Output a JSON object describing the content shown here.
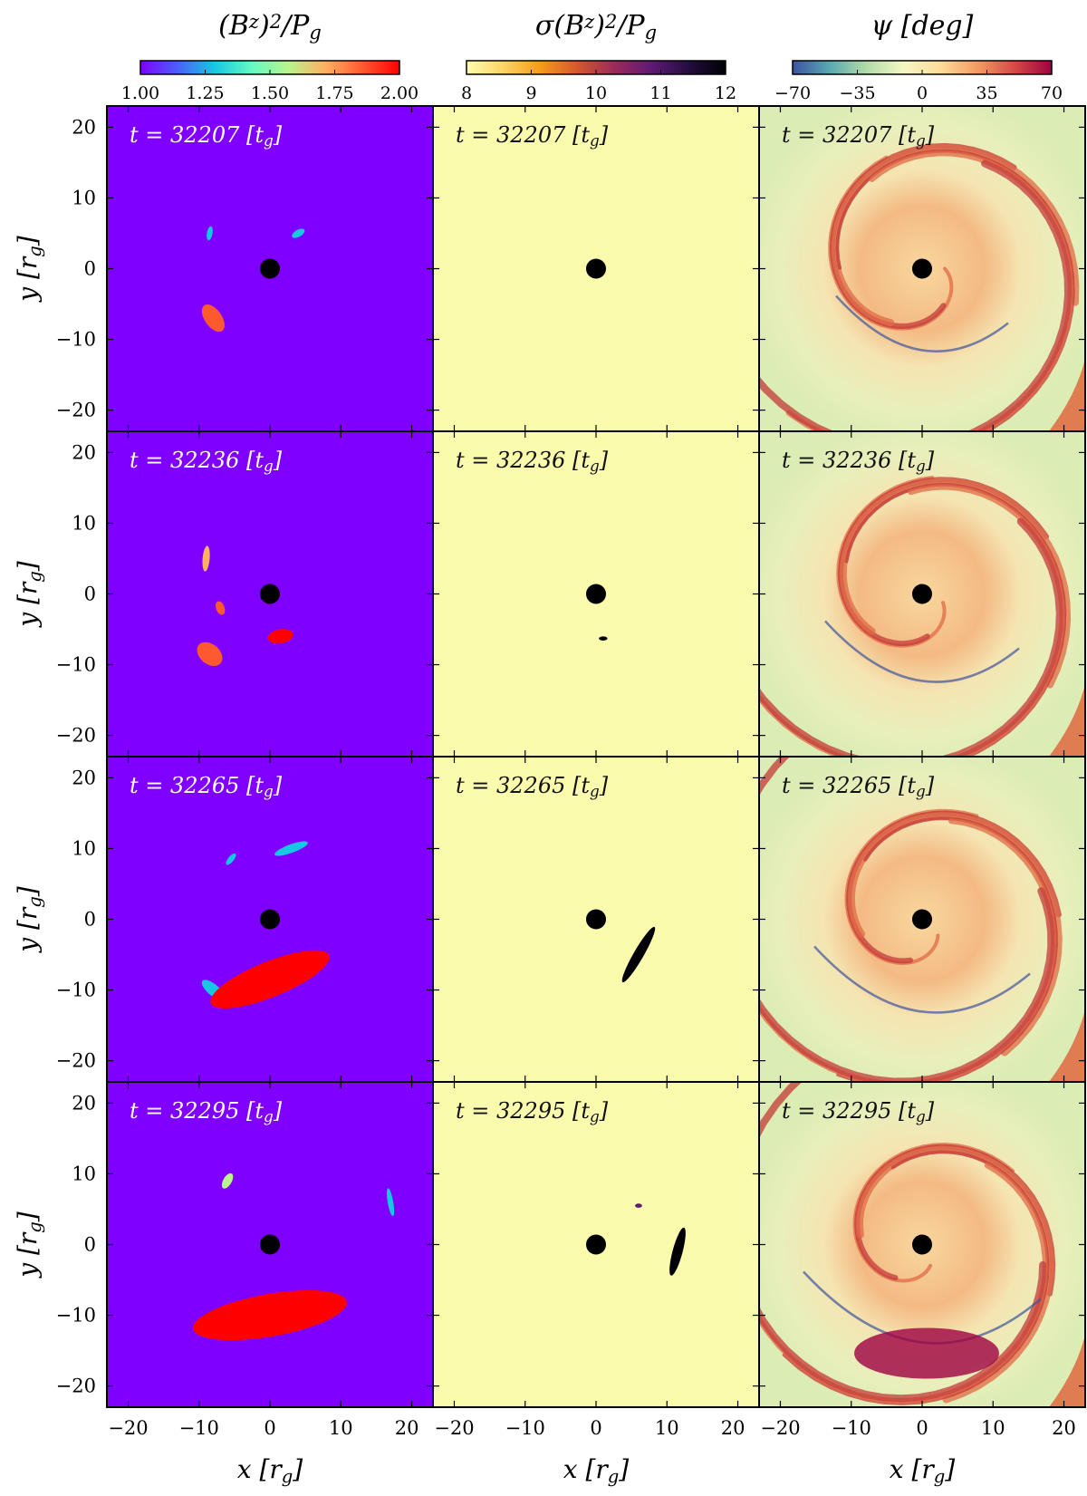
{
  "figure": {
    "columns": [
      {
        "title": "(B^z)^2/P_g",
        "colormap": [
          "#7f00ff",
          "#4b5ff8",
          "#16c8e3",
          "#63f9c3",
          "#b9f48d",
          "#ffb060",
          "#ff5a2e",
          "#ff0000"
        ],
        "colorbar": {
          "min": 1.0,
          "max": 2.0,
          "ticks": [
            "1.00",
            "1.25",
            "1.50",
            "1.75",
            "2.00"
          ],
          "tick_values": [
            1.0,
            1.25,
            1.5,
            1.75,
            2.0
          ]
        },
        "background": "#7f00ff",
        "label_color": "#ffffff"
      },
      {
        "title": "σ(B^z)^2/P_g",
        "colormap": [
          "#fdfdb0",
          "#fcd463",
          "#f59a1a",
          "#d4572c",
          "#9b2a5a",
          "#5e1a74",
          "#230d3f",
          "#000004"
        ],
        "colorbar": {
          "min": 8,
          "max": 12,
          "ticks": [
            "8",
            "9",
            "10",
            "11",
            "12"
          ],
          "tick_values": [
            8,
            9,
            10,
            11,
            12
          ]
        },
        "background": "#fbfbae",
        "label_color": "#111111"
      },
      {
        "title": "ψ [deg]",
        "colormap": [
          "#3d52a0",
          "#5aa8b0",
          "#b2dca8",
          "#f5f7c4",
          "#fddc9a",
          "#f49a63",
          "#d44a45",
          "#9e0142"
        ],
        "colorbar": {
          "min": -70,
          "max": 70,
          "ticks": [
            "−70",
            "−35",
            "0",
            "35",
            "70"
          ],
          "tick_values": [
            -70,
            -35,
            0,
            35,
            70
          ]
        },
        "background": "#e9efbb",
        "label_color": "#111111"
      }
    ],
    "rows": [
      {
        "time_label": "t = 32207 [t_g]"
      },
      {
        "time_label": "t = 32236 [t_g]"
      },
      {
        "time_label": "t = 32265 [t_g]"
      },
      {
        "time_label": "t = 32295 [t_g]"
      }
    ],
    "x_axis_label": "x [r_g]",
    "y_axis_label": "y [r_g]",
    "x_ticks": [
      "−20",
      "−10",
      "0",
      "10",
      "20"
    ],
    "x_tick_values": [
      -20,
      -10,
      0,
      10,
      20
    ],
    "y_ticks": [
      "20",
      "10",
      "0",
      "−10",
      "−20"
    ],
    "y_tick_values": [
      20,
      10,
      0,
      -10,
      -20
    ]
  },
  "chart_data": {
    "type": "heatmap",
    "panels_layout": "4 rows × 3 columns",
    "xlim": [
      -23,
      23
    ],
    "ylim": [
      -23,
      23
    ],
    "black_hole": {
      "x": 0,
      "y": 0,
      "radius": 1.4
    },
    "fields": [
      "(B^z)^2/P_g",
      "σ(B^z)^2/P_g",
      "ψ [deg]"
    ],
    "times": [
      32207,
      32236,
      32265,
      32295
    ],
    "features": {
      "col0": [
        [
          {
            "x": -8.0,
            "y": -7.0,
            "rx": 1.2,
            "ry": 2.2,
            "rot": -35,
            "value": 1.85
          },
          {
            "x": -8.5,
            "y": 5.0,
            "rx": 0.4,
            "ry": 1.0,
            "rot": 10,
            "value": 1.35
          },
          {
            "x": 4.0,
            "y": 5.0,
            "rx": 0.5,
            "ry": 1.0,
            "rot": 60,
            "value": 1.35
          }
        ],
        [
          {
            "x": -9.0,
            "y": 5.0,
            "rx": 0.5,
            "ry": 1.8,
            "rot": 5,
            "value": 1.7
          },
          {
            "x": -7.0,
            "y": -2.0,
            "rx": 0.6,
            "ry": 1.0,
            "rot": -20,
            "value": 1.9
          },
          {
            "x": -8.5,
            "y": -8.5,
            "rx": 1.4,
            "ry": 2.0,
            "rot": -50,
            "value": 1.8
          },
          {
            "x": 1.5,
            "y": -6.0,
            "rx": 1.8,
            "ry": 1.0,
            "rot": -10,
            "value": 2.0
          }
        ],
        [
          {
            "x": 3.0,
            "y": 10.0,
            "rx": 2.5,
            "ry": 0.6,
            "rot": -20,
            "value": 1.35
          },
          {
            "x": -5.5,
            "y": 8.5,
            "rx": 0.4,
            "ry": 1.0,
            "rot": 40,
            "value": 1.35
          },
          {
            "x": -8.0,
            "y": -10.0,
            "rx": 0.8,
            "ry": 2.0,
            "rot": -50,
            "value": 1.3
          },
          {
            "x": 0.0,
            "y": -8.5,
            "rx": 9.0,
            "ry": 2.5,
            "rot": -22,
            "value": 2.0
          }
        ],
        [
          {
            "x": -6.0,
            "y": 9.0,
            "rx": 0.6,
            "ry": 1.2,
            "rot": 30,
            "value": 1.5
          },
          {
            "x": 17.0,
            "y": 6.0,
            "rx": 0.4,
            "ry": 2.0,
            "rot": -10,
            "value": 1.3
          },
          {
            "x": 0.0,
            "y": -10.0,
            "rx": 11.0,
            "ry": 3.0,
            "rot": -10,
            "value": 2.0
          }
        ]
      ],
      "col1": [
        [],
        [
          {
            "x": 1.0,
            "y": -6.3,
            "rx": 0.6,
            "ry": 0.3,
            "rot": 0,
            "value": 12.0
          }
        ],
        [
          {
            "x": 6.0,
            "y": -5.0,
            "rx": 0.7,
            "ry": 4.5,
            "rot": 30,
            "value": 12.0
          }
        ],
        [
          {
            "x": 11.5,
            "y": -1.0,
            "rx": 0.7,
            "ry": 3.5,
            "rot": 15,
            "value": 12.0
          },
          {
            "x": 6.0,
            "y": 5.5,
            "rx": 0.5,
            "ry": 0.3,
            "rot": 0,
            "value": 11.0
          }
        ]
      ]
    }
  }
}
